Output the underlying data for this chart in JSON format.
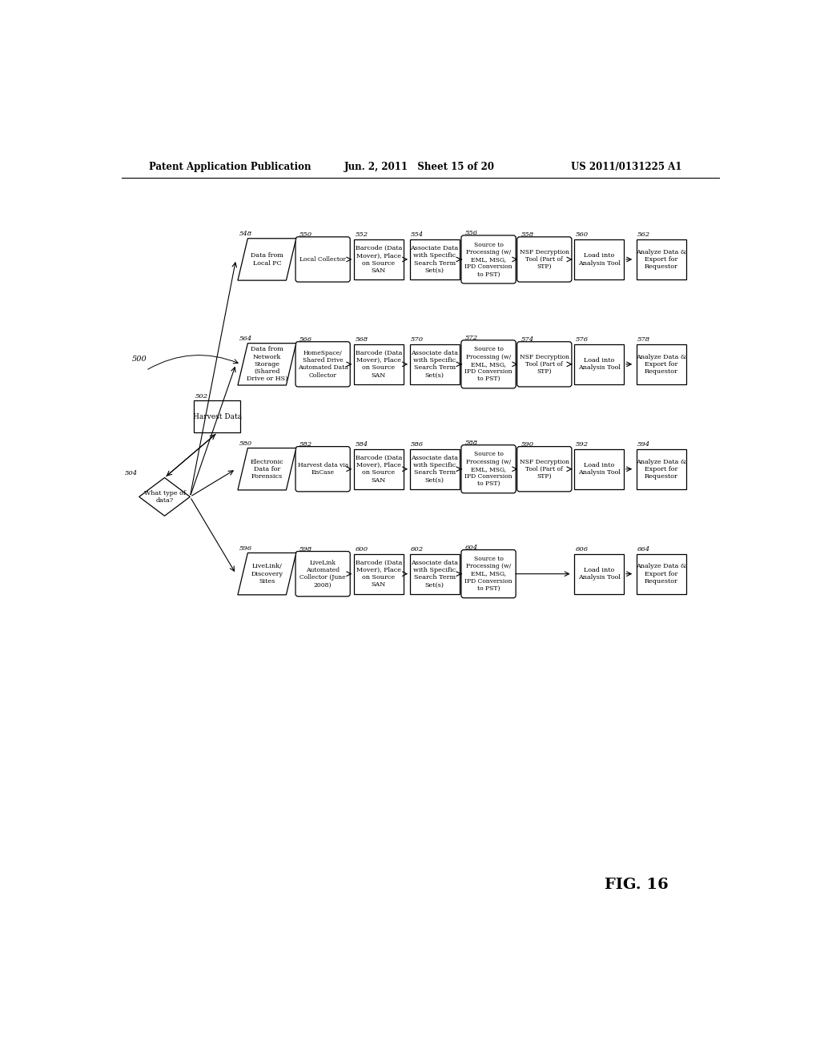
{
  "title_left": "Patent Application Publication",
  "title_mid": "Jun. 2, 2011   Sheet 15 of 20",
  "title_right": "US 2011/0131225 A1",
  "fig_label": "FIG. 16",
  "background": "#ffffff",
  "rows": [
    {
      "row": 0,
      "data_source": {
        "id": "548",
        "label": "Data from\nLocal PC",
        "shape": "parallelogram"
      },
      "collector": {
        "id": "550",
        "label": "Local Collector",
        "shape": "rounded"
      },
      "barcode": {
        "id": "552",
        "label": "Barcode (Data\nMover), Place\non Source\nSAN",
        "shape": "rect"
      },
      "associate": {
        "id": "554",
        "label": "Associate Data\nwith Specific\nSearch Term\nSet(s)",
        "shape": "rect"
      },
      "source_proc": {
        "id": "556",
        "label": "Source to\nProcessing (w/\nEML, MSG,\nIPD Conversion\nto PST)",
        "shape": "rounded"
      },
      "nsf": {
        "id": "558",
        "label": "NSF Decryption\nTool (Part of\nSTP)",
        "shape": "rounded"
      },
      "load": {
        "id": "560",
        "label": "Load into\nAnalysis Tool",
        "shape": "rect"
      },
      "analyze": {
        "id": "562",
        "label": "Analyze Data &\nExport for\nRequestor",
        "shape": "rect"
      }
    },
    {
      "row": 1,
      "data_source": {
        "id": "564",
        "label": "Data from\nNetwork\nStorage\n(Shared\nDrive or HS)",
        "shape": "parallelogram"
      },
      "collector": {
        "id": "566",
        "label": "HomeSpace/\nShared Drive\nAutomated Data\nCollector",
        "shape": "rounded"
      },
      "barcode": {
        "id": "568",
        "label": "Barcode (Data\nMover), Place\non Source\nSAN",
        "shape": "rect"
      },
      "associate": {
        "id": "570",
        "label": "Associate data\nwith Specific\nSearch Term\nSet(s)",
        "shape": "rect"
      },
      "source_proc": {
        "id": "572",
        "label": "Source to\nProcessing (w/\nEML, MSG,\nIPD Conversion\nto PST)",
        "shape": "rounded"
      },
      "nsf": {
        "id": "574",
        "label": "NSF Decryption\nTool (Part of\nSTP)",
        "shape": "rounded"
      },
      "load": {
        "id": "576",
        "label": "Load into\nAnalysis Tool",
        "shape": "rect"
      },
      "analyze": {
        "id": "578",
        "label": "Analyze Data &\nExport for\nRequestor",
        "shape": "rect"
      }
    },
    {
      "row": 2,
      "data_source": {
        "id": "580",
        "label": "Electronic\nData for\nForensics",
        "shape": "parallelogram"
      },
      "collector": {
        "id": "582",
        "label": "Harvest data via\nEnCase",
        "shape": "rounded"
      },
      "barcode": {
        "id": "584",
        "label": "Barcode (Data\nMover), Place\non Source\nSAN",
        "shape": "rect"
      },
      "associate": {
        "id": "586",
        "label": "Associate data\nwith Specific\nSearch Term\nSet(s)",
        "shape": "rect"
      },
      "source_proc": {
        "id": "588",
        "label": "Source to\nProcessing (w/\nEML, MSG,\nIPD Conversion\nto PST)",
        "shape": "rounded"
      },
      "nsf": {
        "id": "590",
        "label": "NSF Decryption\nTool (Part of\nSTP)",
        "shape": "rounded"
      },
      "load": {
        "id": "592",
        "label": "Load into\nAnalysis Tool",
        "shape": "rect"
      },
      "analyze": {
        "id": "594",
        "label": "Analyze Data &\nExport for\nRequestor",
        "shape": "rect"
      }
    },
    {
      "row": 3,
      "data_source": {
        "id": "596",
        "label": "LiveLink/\nDiscovery\nSites",
        "shape": "parallelogram"
      },
      "collector": {
        "id": "598",
        "label": "LiveLink\nAutomated\nCollector (June\n2008)",
        "shape": "rounded"
      },
      "barcode": {
        "id": "600",
        "label": "Barcode (Data\nMover), Place\non Source\nSAN",
        "shape": "rect"
      },
      "associate": {
        "id": "602",
        "label": "Associate data\nwith Specific\nSearch Term\nSet(s)",
        "shape": "rect"
      },
      "source_proc": {
        "id": "604",
        "label": "Source to\nProcessing (w/\nEML, MSG,\nIPD Conversion\nto PST)",
        "shape": "rounded"
      },
      "nsf": null,
      "load": {
        "id": "606",
        "label": "Load into\nAnalysis Tool",
        "shape": "rect"
      },
      "analyze": {
        "id": "664",
        "label": "Analyze Data &\nExport for\nRequestor",
        "shape": "rect"
      }
    }
  ]
}
